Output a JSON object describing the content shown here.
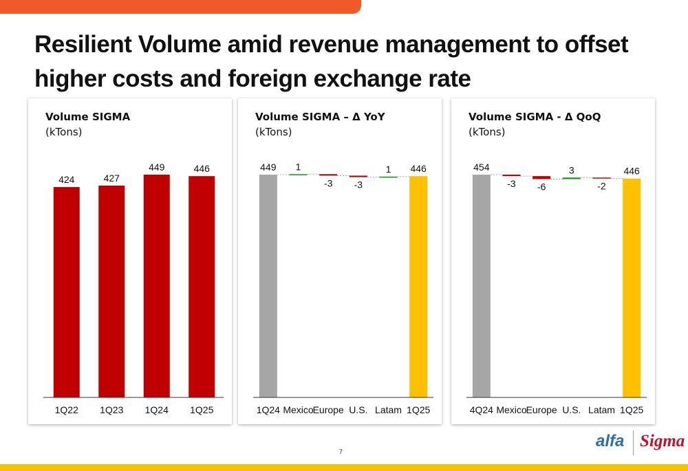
{
  "header": {
    "title": "Resilient Volume amid revenue management to offset higher costs and foreign exchange rate"
  },
  "footer": {
    "page_number": "7",
    "logo_alfa": "alfa",
    "logo_sigma": "Sigma"
  },
  "colors": {
    "accent_orange": "#f05a28",
    "bar_red": "#c00000",
    "gray": "#a6a6a6",
    "gold": "#ffc000",
    "green": "#00a000",
    "bottom_bar": "#f5c400"
  },
  "chart_data": [
    {
      "type": "bar",
      "title": "Volume SIGMA",
      "unit": "(kTons)",
      "categories": [
        "1Q22",
        "1Q23",
        "1Q24",
        "1Q25"
      ],
      "values": [
        424,
        427,
        449,
        446
      ],
      "ylim": [
        0,
        449
      ],
      "grid": false
    },
    {
      "type": "bar",
      "subtype": "waterfall",
      "title": "Volume SIGMA – Δ YoY",
      "unit": "(kTons)",
      "categories": [
        "1Q24",
        "Mexico",
        "Europe",
        "U.S.",
        "Latam",
        "1Q25"
      ],
      "values": [
        449,
        1,
        -3,
        -3,
        1,
        446
      ],
      "kinds": [
        "total",
        "delta",
        "delta",
        "delta",
        "delta",
        "total"
      ],
      "labels": [
        "449",
        "1",
        "-3",
        "-3",
        "1",
        "446"
      ],
      "ylim": [
        0,
        449
      ],
      "grid": false
    },
    {
      "type": "bar",
      "subtype": "waterfall",
      "title": "Volume SIGMA - Δ QoQ",
      "unit": "(kTons)",
      "categories": [
        "4Q24",
        "Mexico",
        "Europe",
        "U.S.",
        "Latam",
        "1Q25"
      ],
      "values": [
        454,
        -3,
        -6,
        3,
        -2,
        446
      ],
      "kinds": [
        "total",
        "delta",
        "delta",
        "delta",
        "delta",
        "total"
      ],
      "labels": [
        "454",
        "-3",
        "-6",
        "3",
        "-2",
        "446"
      ],
      "ylim": [
        0,
        454
      ],
      "grid": false
    }
  ]
}
